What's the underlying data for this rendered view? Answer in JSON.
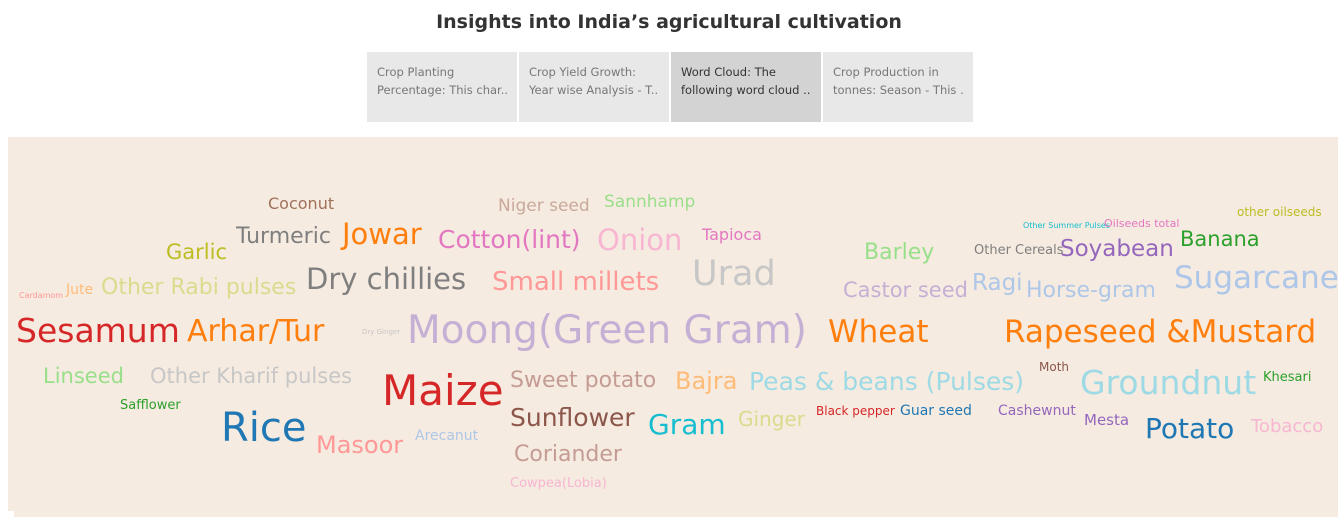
{
  "title": "Insights into India’s agricultural cultivation",
  "tabs": [
    {
      "line1": "Crop Planting",
      "line2": "Percentage: This char..",
      "active": false
    },
    {
      "line1": "Crop Yield Growth:",
      "line2": "Year wise Analysis - T..",
      "active": false
    },
    {
      "line1": "Word Cloud: The",
      "line2": "following word cloud ..",
      "active": true
    },
    {
      "line1": "Crop Production in",
      "line2": "tonnes: Season - This ..",
      "active": false
    }
  ],
  "words": [
    {
      "text": "Coconut",
      "color": "#a0705a"
    },
    {
      "text": "Niger seed",
      "color": "#c9a99b"
    },
    {
      "text": "Sannhamp",
      "color": "#98df8a"
    },
    {
      "text": "Garlic",
      "color": "#bcbd22"
    },
    {
      "text": "Turmeric",
      "color": "#7f7f7f"
    },
    {
      "text": "Jowar",
      "color": "#ff7f0e"
    },
    {
      "text": "Cotton(lint)",
      "color": "#e377c2"
    },
    {
      "text": "Onion",
      "color": "#f7b6d2"
    },
    {
      "text": "Tapioca",
      "color": "#e377c2"
    },
    {
      "text": "Barley",
      "color": "#98df8a"
    },
    {
      "text": "Other Cereals",
      "color": "#7f7f7f"
    },
    {
      "text": "Soyabean",
      "color": "#9467bd"
    },
    {
      "text": "Banana",
      "color": "#2ca02c"
    },
    {
      "text": "other oilseeds",
      "color": "#bcbd22"
    },
    {
      "text": "Other Summer Pulses",
      "color": "#17becf"
    },
    {
      "text": "Oilseeds total",
      "color": "#e377c2"
    },
    {
      "text": "Cardamom",
      "color": "#ff9896"
    },
    {
      "text": "Jute",
      "color": "#ffbb78"
    },
    {
      "text": "Other Rabi pulses",
      "color": "#dbdb8d"
    },
    {
      "text": "Dry chillies",
      "color": "#7f7f7f"
    },
    {
      "text": "Small millets",
      "color": "#ff9896"
    },
    {
      "text": "Urad",
      "color": "#c7c7c7"
    },
    {
      "text": "Castor seed",
      "color": "#c5b0d5"
    },
    {
      "text": "Ragi",
      "color": "#aec7e8"
    },
    {
      "text": "Horse-gram",
      "color": "#aec7e8"
    },
    {
      "text": "Sugarcane",
      "color": "#aec7e8"
    },
    {
      "text": "Sesamum",
      "color": "#d62728"
    },
    {
      "text": "Arhar/Tur",
      "color": "#ff7f0e"
    },
    {
      "text": "Dry Ginger",
      "color": "#c7c7c7"
    },
    {
      "text": "Moong(Green Gram)",
      "color": "#c5b0d5"
    },
    {
      "text": "Wheat",
      "color": "#ff7f0e"
    },
    {
      "text": "Rapeseed &Mustard",
      "color": "#ff7f0e"
    },
    {
      "text": "Linseed",
      "color": "#98df8a"
    },
    {
      "text": "Other Kharif pulses",
      "color": "#c7c7c7"
    },
    {
      "text": "Maize",
      "color": "#d62728"
    },
    {
      "text": "Sweet potato",
      "color": "#c49c94"
    },
    {
      "text": "Bajra",
      "color": "#ffbb78"
    },
    {
      "text": "Peas & beans (Pulses)",
      "color": "#9edae5"
    },
    {
      "text": "Moth",
      "color": "#8c564b"
    },
    {
      "text": "Groundnut",
      "color": "#9edae5"
    },
    {
      "text": "Khesari",
      "color": "#2ca02c"
    },
    {
      "text": "Safflower",
      "color": "#2ca02c"
    },
    {
      "text": "Rice",
      "color": "#1f77b4"
    },
    {
      "text": "Masoor",
      "color": "#ff9896"
    },
    {
      "text": "Arecanut",
      "color": "#aec7e8"
    },
    {
      "text": "Sunflower",
      "color": "#8c564b"
    },
    {
      "text": "Gram",
      "color": "#17becf"
    },
    {
      "text": "Ginger",
      "color": "#dbdb8d"
    },
    {
      "text": "Black pepper",
      "color": "#d62728"
    },
    {
      "text": "Guar seed",
      "color": "#1f77b4"
    },
    {
      "text": "Cashewnut",
      "color": "#9467bd"
    },
    {
      "text": "Mesta",
      "color": "#9467bd"
    },
    {
      "text": "Potato",
      "color": "#1f77b4"
    },
    {
      "text": "Tobacco",
      "color": "#f7b6d2"
    },
    {
      "text": "Coriander",
      "color": "#c49c94"
    },
    {
      "text": "Cowpea(Lobia)",
      "color": "#f7b6d2"
    }
  ]
}
